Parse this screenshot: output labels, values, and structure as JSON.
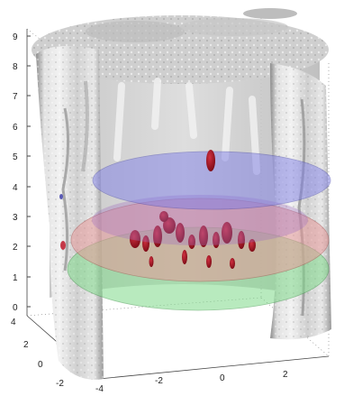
{
  "figure": {
    "z_ticks": [
      "0",
      "1",
      "2",
      "3",
      "4",
      "5",
      "6",
      "7",
      "8",
      "9"
    ],
    "y_ticks": [
      "4",
      "2",
      "0",
      "-2"
    ],
    "x_ticks": [
      "-4",
      "-2",
      "0",
      "2"
    ],
    "colors": {
      "surface": "#d9d9d9",
      "surface_shadow": "#9a9a9a",
      "blue_plane": "#7f7fe6",
      "pink_plane": "#e69999",
      "green_plane": "#7fd98a",
      "blobs": "#9b1020"
    }
  }
}
